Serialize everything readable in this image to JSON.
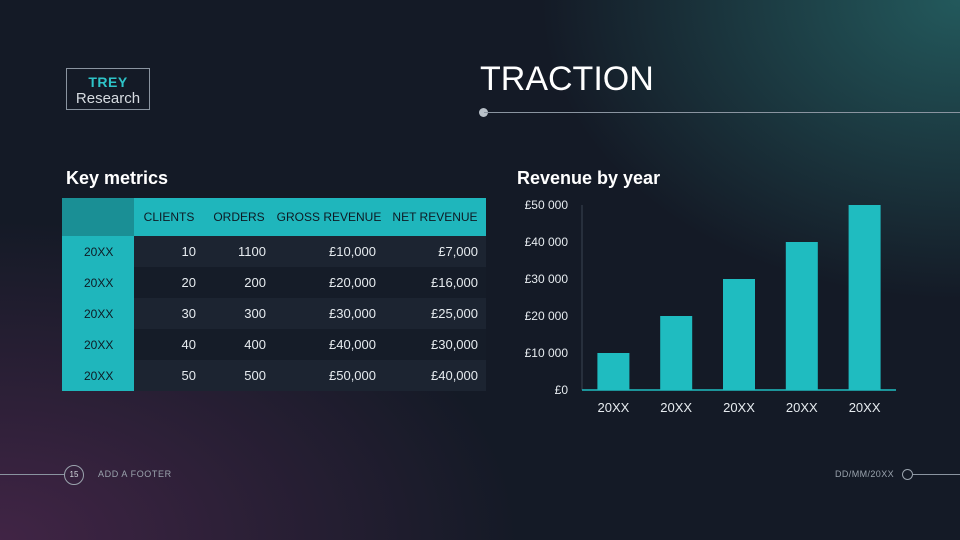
{
  "logo": {
    "line1": "TREY",
    "line2": "Research"
  },
  "slide_title": "TRACTION",
  "metrics": {
    "title": "Key metrics",
    "headers": [
      "CLIENTS",
      "ORDERS",
      "GROSS REVENUE",
      "NET REVENUE"
    ],
    "rows": [
      {
        "year": "20XX",
        "clients": "10",
        "orders": "1100",
        "gross": "£10,000",
        "net": "£7,000"
      },
      {
        "year": "20XX",
        "clients": "20",
        "orders": "200",
        "gross": "£20,000",
        "net": "£16,000"
      },
      {
        "year": "20XX",
        "clients": "30",
        "orders": "300",
        "gross": "£30,000",
        "net": "£25,000"
      },
      {
        "year": "20XX",
        "clients": "40",
        "orders": "400",
        "gross": "£40,000",
        "net": "£30,000"
      },
      {
        "year": "20XX",
        "clients": "50",
        "orders": "500",
        "gross": "£50,000",
        "net": "£40,000"
      }
    ]
  },
  "revenue": {
    "title": "Revenue by year"
  },
  "chart_data": {
    "type": "bar",
    "title": "Revenue by year",
    "categories": [
      "20XX",
      "20XX",
      "20XX",
      "20XX",
      "20XX"
    ],
    "values": [
      10000,
      20000,
      30000,
      40000,
      50000
    ],
    "ylim": [
      0,
      50000
    ],
    "yticks": [
      0,
      10000,
      20000,
      30000,
      40000,
      50000
    ],
    "ytick_labels": [
      "£0",
      "£10 000",
      "£20 000",
      "£30 000",
      "£40 000",
      "£50 000"
    ],
    "color": "#1fbcc0"
  },
  "footer": {
    "page_number": "15",
    "text": "ADD A FOOTER",
    "date": "DD/MM/20XX"
  },
  "colors": {
    "accent": "#1fb6bc",
    "background": "#141a26"
  }
}
